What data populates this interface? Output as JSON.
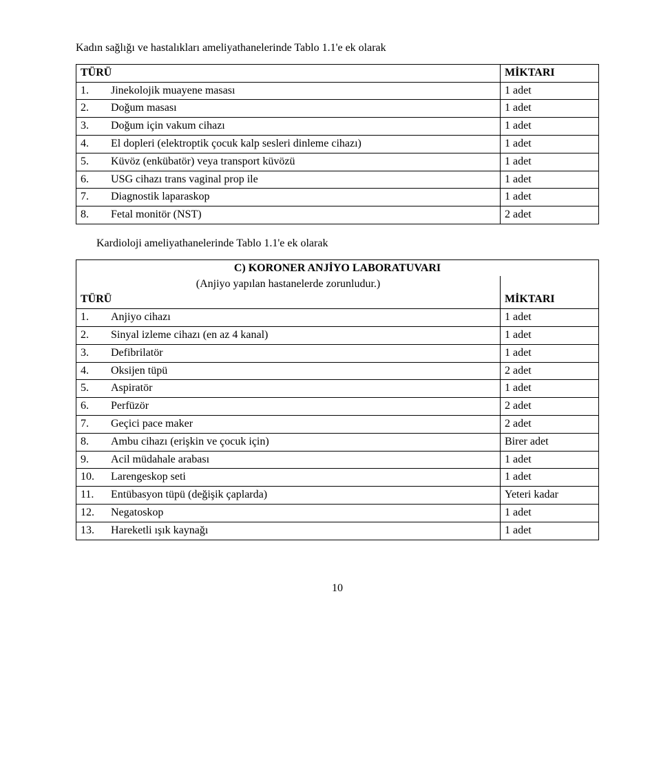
{
  "intro1": "Kadın sağlığı ve hastalıkları ameliyathanelerinde Tablo 1.1'e ek olarak",
  "intro2": "Kardioloji ameliyathanelerinde Tablo 1.1'e ek olarak",
  "header_turu": "TÜRÜ",
  "header_miktari": "MİKTARI",
  "table1": {
    "rows": [
      {
        "n": "1.",
        "label": "Jinekolojik muayene masası",
        "qty": "1 adet"
      },
      {
        "n": "2.",
        "label": "Doğum masası",
        "qty": "1 adet"
      },
      {
        "n": "3.",
        "label": "Doğum için vakum cihazı",
        "qty": "1 adet"
      },
      {
        "n": "4.",
        "label": "El dopleri (elektroptik çocuk kalp sesleri dinleme cihazı)",
        "qty": "1 adet"
      },
      {
        "n": "5.",
        "label": "Küvöz (enkübatör) veya transport küvözü",
        "qty": "1 adet"
      },
      {
        "n": "6.",
        "label": "USG  cihazı trans vaginal prop ile",
        "qty": "1 adet"
      },
      {
        "n": "7.",
        "label": "Diagnostik laparaskop",
        "qty": "1 adet"
      },
      {
        "n": "8.",
        "label": "Fetal monitör (NST)",
        "qty": "2 adet"
      }
    ]
  },
  "table2": {
    "title": "C) KORONER ANJİYO LABORATUVARI",
    "subtitle": "(Anjiyo yapılan hastanelerde zorunludur.)",
    "rows": [
      {
        "n": "1.",
        "label": "Anjiyo cihazı",
        "qty": "1 adet"
      },
      {
        "n": "2.",
        "label": "Sinyal izleme cihazı (en az 4 kanal)",
        "qty": "1 adet"
      },
      {
        "n": "3.",
        "label": "Defibrilatör",
        "qty": "1 adet"
      },
      {
        "n": "4.",
        "label": "Oksijen tüpü",
        "qty": "2 adet"
      },
      {
        "n": "5.",
        "label": "Aspiratör",
        "qty": "1 adet"
      },
      {
        "n": "6.",
        "label": "Perfüzör",
        "qty": "2 adet"
      },
      {
        "n": "7.",
        "label": "Geçici pace maker",
        "qty": "2 adet"
      },
      {
        "n": "8.",
        "label": "Ambu cihazı (erişkin ve çocuk için)",
        "qty": "Birer adet"
      },
      {
        "n": "9.",
        "label": "Acil müdahale arabası",
        "qty": "1 adet"
      },
      {
        "n": "10.",
        "label": "Larengeskop seti",
        "qty": "1 adet"
      },
      {
        "n": "11.",
        "label": "Entübasyon tüpü (değişik çaplarda)",
        "qty": "Yeteri kadar"
      },
      {
        "n": "12.",
        "label": "Negatoskop",
        "qty": "1 adet"
      },
      {
        "n": "13.",
        "label": "Hareketli ışık kaynağı",
        "qty": "1 adet"
      }
    ]
  },
  "page_number": "10"
}
